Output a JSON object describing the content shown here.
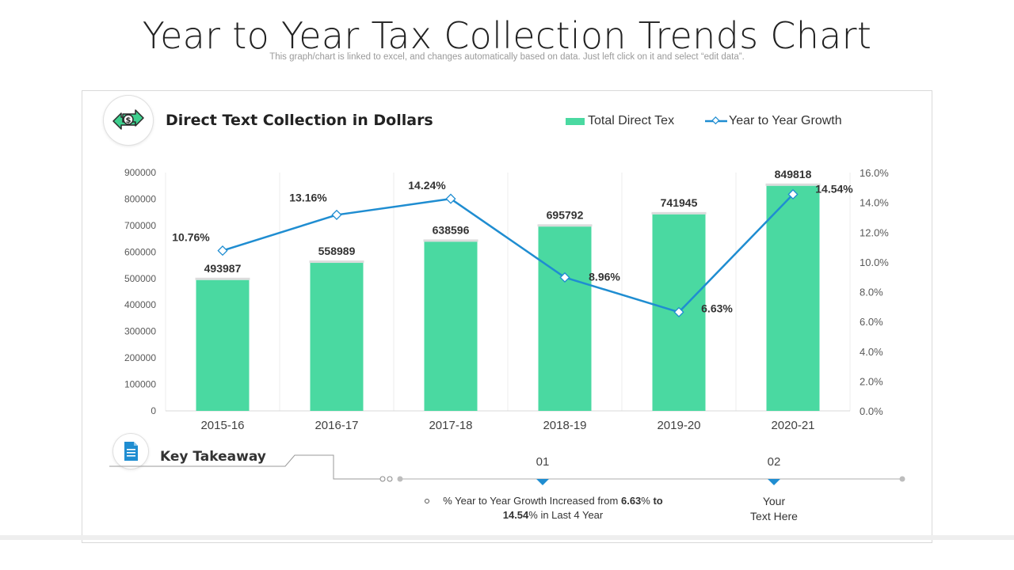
{
  "page": {
    "title": "Year to Year Tax Collection Trends Chart",
    "subtitle": "This graph/chart is linked to excel, and changes automatically based on data. Just left click on it and select “edit data”."
  },
  "icons": {
    "money": "money-exchange-icon",
    "document": "document-icon"
  },
  "colors": {
    "bar": "#4ad9a1",
    "line": "#1f8dd1",
    "text": "#333333",
    "axis": "#595959",
    "grid": "#ececec"
  },
  "chart_data": {
    "type": "bar",
    "title": "Direct Text Collection in Dollars",
    "categories": [
      "2015-16",
      "2016-17",
      "2017-18",
      "2018-19",
      "2019-20",
      "2020-21"
    ],
    "series": [
      {
        "name": "Total Direct Tex",
        "type": "bar",
        "axis": "left",
        "values": [
          493987,
          558989,
          638596,
          695792,
          741945,
          849818
        ],
        "labels": [
          "493987",
          "558989",
          "638596",
          "695792",
          "741945",
          "849818"
        ]
      },
      {
        "name": "Year to Year Growth",
        "type": "line",
        "axis": "right",
        "values": [
          10.76,
          13.16,
          14.24,
          8.96,
          6.63,
          14.54
        ],
        "labels": [
          "10.76%",
          "13.16%",
          "14.24%",
          "8.96%",
          "6.63%",
          "14.54%"
        ]
      }
    ],
    "y_left": {
      "min": 0,
      "max": 900000,
      "ticks": [
        "0",
        "100000",
        "200000",
        "300000",
        "400000",
        "500000",
        "600000",
        "700000",
        "800000",
        "900000"
      ]
    },
    "y_right": {
      "min": 0,
      "max": 16,
      "ticks": [
        "0.0%",
        "2.0%",
        "4.0%",
        "6.0%",
        "8.0%",
        "10.0%",
        "12.0%",
        "14.0%",
        "16.0%"
      ]
    },
    "legend": "top-right",
    "grid": "vertical"
  },
  "takeaway": {
    "title": "Key Takeaway",
    "step1_num": "01",
    "step1_text_a": "% Year to Year Growth Increased from ",
    "step1_bold_a": "6.63",
    "step1_text_b": "% ",
    "step1_bold_b": "to",
    "step1_bold_c": "14.54",
    "step1_text_c": "% in Last 4 Year",
    "step2_num": "02",
    "step2_line1": "Your",
    "step2_line2": "Text Here"
  }
}
